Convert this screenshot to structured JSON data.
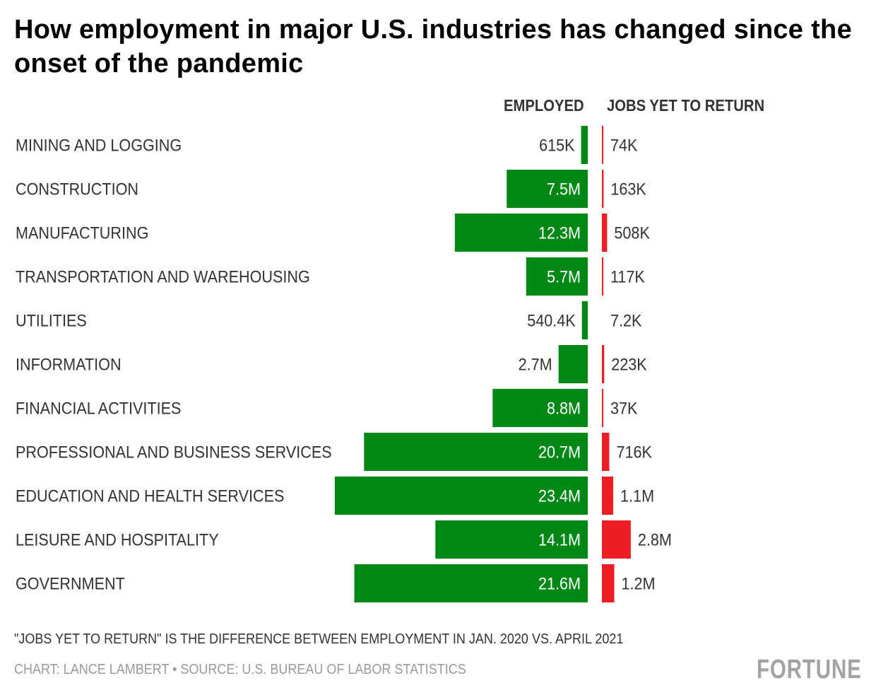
{
  "chart_data": {
    "type": "bar",
    "title": "How employment in major U.S. industries has changed since the onset of the pandemic",
    "column_headers": {
      "employed": "EMPLOYED",
      "jobs_yet_to_return": "JOBS YET TO RETURN"
    },
    "colors": {
      "employed": "#008817",
      "jobs_yet_to_return": "#ee1c25"
    },
    "units": "millions of jobs",
    "categories": [
      "MINING AND LOGGING",
      "CONSTRUCTION",
      "MANUFACTURING",
      "TRANSPORTATION AND WAREHOUSING",
      "UTILITIES",
      "INFORMATION",
      "FINANCIAL ACTIVITIES",
      "PROFESSIONAL AND BUSINESS SERVICES",
      "EDUCATION AND HEALTH SERVICES",
      "LEISURE AND HOSPITALITY",
      "GOVERNMENT"
    ],
    "series": [
      {
        "name": "EMPLOYED",
        "values": [
          0.615,
          7.5,
          12.3,
          5.7,
          0.5404,
          2.7,
          8.8,
          20.7,
          23.4,
          14.1,
          21.6
        ],
        "labels": [
          "615K",
          "7.5M",
          "12.3M",
          "5.7M",
          "540.4K",
          "2.7M",
          "8.8M",
          "20.7M",
          "23.4M",
          "14.1M",
          "21.6M"
        ]
      },
      {
        "name": "JOBS YET TO RETURN",
        "values": [
          0.074,
          0.163,
          0.508,
          0.117,
          0.0072,
          0.223,
          0.037,
          0.716,
          1.1,
          2.8,
          1.2
        ],
        "labels": [
          "74K",
          "163K",
          "508K",
          "117K",
          "7.2K",
          "223K",
          "37K",
          "716K",
          "1.1M",
          "2.8M",
          "1.2M"
        ]
      }
    ],
    "note": "\"JOBS YET TO RETURN\" IS THE DIFFERENCE BETWEEN EMPLOYMENT IN JAN. 2020 VS. APRIL 2021",
    "credit": "CHART: LANCE LAMBERT • SOURCE: U.S. BUREAU OF LABOR STATISTICS",
    "brand": "FORTUNE"
  }
}
